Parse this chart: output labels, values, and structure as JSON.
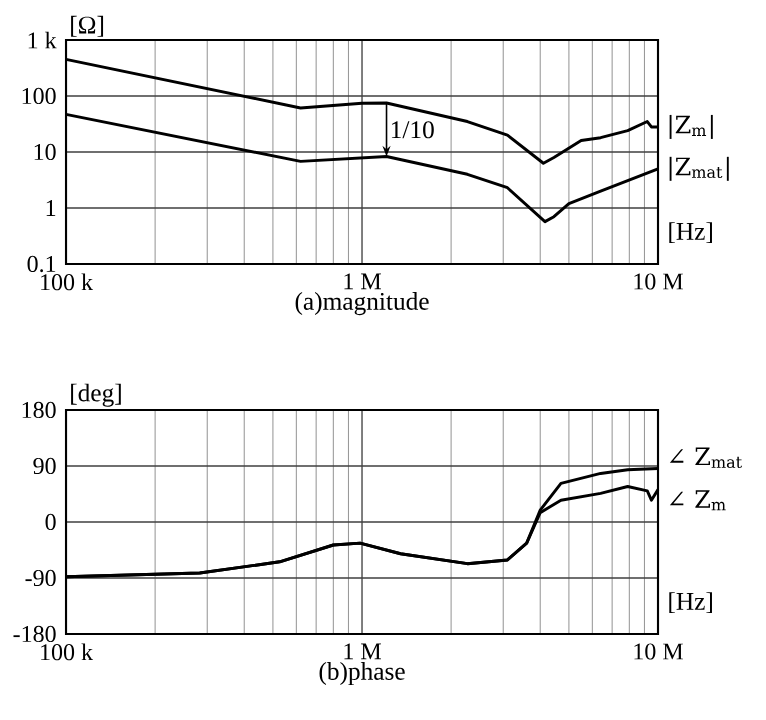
{
  "chart_data": [
    {
      "type": "line",
      "title": "(a)magnitude",
      "ylabel": "[Ω]",
      "xlabel": "[Hz]",
      "log": "xy",
      "grid": true,
      "legend": false,
      "xlim": [
        100000,
        10000000
      ],
      "xticks": [
        {
          "value": 100000,
          "label": "100 k"
        },
        {
          "value": 1000000,
          "label": "1 M"
        },
        {
          "value": 10000000,
          "label": "10 M"
        }
      ],
      "ylim": [
        0.1,
        1000
      ],
      "yticks": [
        0.1,
        1,
        10,
        100,
        {
          "value": 1000,
          "label": "1 k"
        }
      ],
      "annotations": [
        "1/10"
      ],
      "series": [
        {
          "name": "|Z$_{m}$|",
          "color": "#000000",
          "x": [
            100000,
            620000,
            1000000,
            1210000,
            2270000,
            3100000,
            4100000,
            4450000,
            5500000,
            6400000,
            7900000,
            9200000,
            9500000,
            10000000
          ],
          "values": [
            450,
            61,
            74,
            75,
            35,
            20,
            6.3,
            8,
            16,
            18,
            24,
            35,
            28,
            28
          ]
        },
        {
          "name": "|Z$_{mat}$|",
          "color": "#000000",
          "x": [
            100000,
            620000,
            1210000,
            2270000,
            3100000,
            4150000,
            4450000,
            5000000,
            6400000,
            10000000
          ],
          "values": [
            47,
            6.8,
            8.3,
            4,
            2.3,
            0.57,
            0.7,
            1.2,
            2,
            5
          ]
        }
      ]
    },
    {
      "type": "line",
      "title": "(b)phase",
      "ylabel": "[deg]",
      "xlabel": "[Hz]",
      "log": "x",
      "grid": true,
      "legend": false,
      "xlim": [
        100000,
        10000000
      ],
      "xticks": [
        {
          "value": 100000,
          "label": "100 k"
        },
        {
          "value": 1000000,
          "label": "1 M"
        },
        {
          "value": 10000000,
          "label": "10 M"
        }
      ],
      "ylim": [
        -180,
        180
      ],
      "yticks": [
        -180,
        -90,
        0,
        90,
        180
      ],
      "series": [
        {
          "name": "∠ Z$_{mat}$",
          "color": "#000000",
          "x": [
            100000,
            283000,
            527000,
            800000,
            985000,
            1350000,
            2270000,
            3100000,
            3600000,
            4000000,
            4700000,
            6400000,
            7900000,
            10000000
          ],
          "values": [
            -88,
            -82,
            -64,
            -37,
            -34,
            -51,
            -67,
            -61,
            -34,
            19,
            62,
            78,
            84,
            86
          ]
        },
        {
          "name": "∠ Z$_{m}$",
          "color": "#000000",
          "x": [
            100000,
            283000,
            527000,
            800000,
            985000,
            1350000,
            2270000,
            3100000,
            3600000,
            4000000,
            4700000,
            6400000,
            7900000,
            9200000,
            9500000,
            10000000
          ],
          "values": [
            -88,
            -82,
            -64,
            -37,
            -34,
            -51,
            -67,
            -61,
            -34,
            15,
            35,
            46,
            57,
            50,
            35,
            52
          ]
        }
      ]
    }
  ]
}
